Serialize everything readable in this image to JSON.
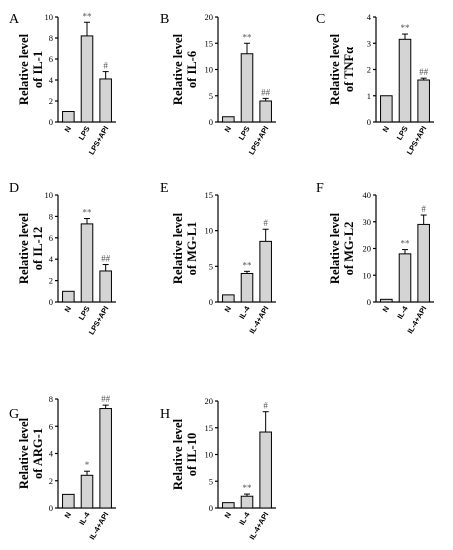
{
  "colors": {
    "bar_fill": "#d4d4d4",
    "bar_stroke": "#000000",
    "axis": "#000000",
    "sig": "#555555"
  },
  "chart_data": [
    {
      "type": "bar",
      "panel": "A",
      "ylabel": [
        "Relative level",
        "of IL-1"
      ],
      "categories": [
        "N",
        "LPS",
        "LPS+API"
      ],
      "values": [
        1,
        8.2,
        4.1
      ],
      "errors": [
        0,
        1.3,
        0.7
      ],
      "significance": [
        "",
        "**",
        "#"
      ],
      "ylim": [
        0,
        10
      ],
      "yticks": [
        0,
        2,
        4,
        6,
        8,
        10
      ]
    },
    {
      "type": "bar",
      "panel": "B",
      "ylabel": [
        "Relative level",
        "of IL-6"
      ],
      "categories": [
        "N",
        "LPS",
        "LPS+API"
      ],
      "values": [
        1,
        13,
        4
      ],
      "errors": [
        0,
        2,
        0.5
      ],
      "significance": [
        "",
        "**",
        "##"
      ],
      "ylim": [
        0,
        20
      ],
      "yticks": [
        0,
        5,
        10,
        15,
        20
      ]
    },
    {
      "type": "bar",
      "panel": "C",
      "ylabel": [
        "Relative level",
        "of TNFα"
      ],
      "categories": [
        "N",
        "LPS",
        "LPS+API"
      ],
      "values": [
        1,
        3.15,
        1.6
      ],
      "errors": [
        0,
        0.2,
        0.07
      ],
      "significance": [
        "",
        "**",
        "##"
      ],
      "ylim": [
        0,
        4
      ],
      "yticks": [
        0,
        1,
        2,
        3,
        4
      ]
    },
    {
      "type": "bar",
      "panel": "D",
      "ylabel": [
        "Relative level",
        "of IL-12"
      ],
      "categories": [
        "N",
        "LPS",
        "LPS+API"
      ],
      "values": [
        1,
        7.3,
        2.9
      ],
      "errors": [
        0,
        0.5,
        0.6
      ],
      "significance": [
        "",
        "**",
        "##"
      ],
      "ylim": [
        0,
        10
      ],
      "yticks": [
        0,
        2,
        4,
        6,
        8,
        10
      ]
    },
    {
      "type": "bar",
      "panel": "E",
      "ylabel": [
        "Relative level",
        "of MG-L1"
      ],
      "categories": [
        "N",
        "IL-4",
        "IL-4+API"
      ],
      "values": [
        1,
        4,
        8.5
      ],
      "errors": [
        0,
        0.3,
        1.7
      ],
      "significance": [
        "",
        "**",
        "#"
      ],
      "ylim": [
        0,
        15
      ],
      "yticks": [
        0,
        5,
        10,
        15
      ]
    },
    {
      "type": "bar",
      "panel": "F",
      "ylabel": [
        "Relative level",
        "of MG-L2"
      ],
      "categories": [
        "N",
        "IL-4",
        "IL-4+API"
      ],
      "values": [
        1,
        18,
        29
      ],
      "errors": [
        0,
        1.6,
        3.5
      ],
      "significance": [
        "",
        "**",
        "#"
      ],
      "ylim": [
        0,
        40
      ],
      "yticks": [
        0,
        10,
        20,
        30,
        40
      ]
    },
    {
      "type": "bar",
      "panel": "G",
      "ylabel": [
        "Relative level",
        "of ARG-1"
      ],
      "categories": [
        "N",
        "IL-4",
        "IL-4+API"
      ],
      "values": [
        1,
        2.4,
        7.3
      ],
      "errors": [
        0,
        0.3,
        0.25
      ],
      "significance": [
        "",
        "*",
        "##"
      ],
      "ylim": [
        0,
        8
      ],
      "yticks": [
        0,
        2,
        4,
        6,
        8
      ]
    },
    {
      "type": "bar",
      "panel": "H",
      "ylabel": [
        "Relative level",
        "of IL-10"
      ],
      "categories": [
        "N",
        "IL-4",
        "IL-4+API"
      ],
      "values": [
        1,
        2.2,
        14.2
      ],
      "errors": [
        0,
        0.4,
        3.8
      ],
      "significance": [
        "",
        "**",
        "#"
      ],
      "ylim": [
        0,
        20
      ],
      "yticks": [
        0,
        5,
        10,
        15,
        20
      ]
    }
  ]
}
